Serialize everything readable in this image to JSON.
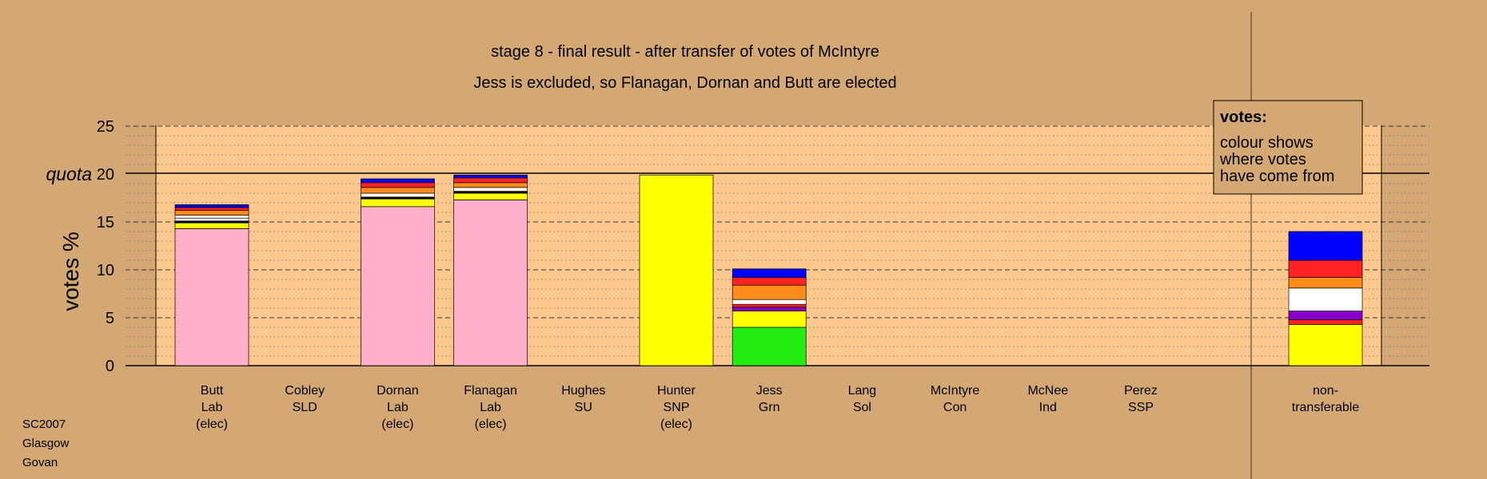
{
  "chart_data": {
    "type": "bar",
    "stacked": true,
    "title": "stage 8 - final result - after transfer of votes of McIntyre",
    "subtitle": "Jess is excluded, so Flanagan, Dornan and Butt are elected",
    "ylabel": "votes %",
    "ylim": [
      0,
      25
    ],
    "yticks": [
      0,
      5,
      10,
      15,
      20,
      25
    ],
    "quota_label": "quota",
    "quota_value": 20,
    "categories": [
      {
        "lines": [
          "Butt",
          "Lab",
          "(elec)"
        ]
      },
      {
        "lines": [
          "Cobley",
          "SLD"
        ]
      },
      {
        "lines": [
          "Dornan",
          "Lab",
          "(elec)"
        ]
      },
      {
        "lines": [
          "Flanagan",
          "Lab",
          "(elec)"
        ]
      },
      {
        "lines": [
          "Hughes",
          "SU"
        ]
      },
      {
        "lines": [
          "Hunter",
          "SNP",
          "(elec)"
        ]
      },
      {
        "lines": [
          "Jess",
          "Grn"
        ]
      },
      {
        "lines": [
          "Lang",
          "Sol"
        ]
      },
      {
        "lines": [
          "McIntyre",
          "Con"
        ]
      },
      {
        "lines": [
          "McNee",
          "Ind"
        ]
      },
      {
        "lines": [
          "Perez",
          "SSP"
        ]
      },
      {
        "lines": [
          "non-",
          "transferable"
        ]
      }
    ],
    "colors": {
      "Lab": "#FFB0C8",
      "SNP": "#FFFF00",
      "Grn": "#22EE11",
      "Sol": "#FF2222",
      "SSP": "#FF8C1A",
      "Con": "#0000FF",
      "Ind": "#FFFFFF",
      "SU": "#8800CC",
      "SLD": "#FFAA00",
      "black": "#000000"
    },
    "stacks": [
      [
        [
          "Lab",
          14.3
        ],
        [
          "SNP",
          0.6
        ],
        [
          "black",
          0.2
        ],
        [
          "Ind",
          0.3
        ],
        [
          "Ind",
          0.3
        ],
        [
          "SSP",
          0.5
        ],
        [
          "Sol",
          0.3
        ],
        [
          "Con",
          0.3
        ]
      ],
      [],
      [
        [
          "Lab",
          16.6
        ],
        [
          "SNP",
          0.8
        ],
        [
          "black",
          0.2
        ],
        [
          "Ind",
          0.4
        ],
        [
          "SSP",
          0.6
        ],
        [
          "Sol",
          0.5
        ],
        [
          "Con",
          0.4
        ]
      ],
      [
        [
          "Lab",
          17.3
        ],
        [
          "SNP",
          0.7
        ],
        [
          "black",
          0.2
        ],
        [
          "Ind",
          0.4
        ],
        [
          "SSP",
          0.5
        ],
        [
          "Sol",
          0.5
        ],
        [
          "Con",
          0.3
        ]
      ],
      [],
      [
        [
          "SNP",
          19.9
        ]
      ],
      [
        [
          "Grn",
          4.0
        ],
        [
          "SNP",
          1.7
        ],
        [
          "SU",
          0.4
        ],
        [
          "Sol",
          0.3
        ],
        [
          "Ind",
          0.5
        ],
        [
          "SSP",
          1.5
        ],
        [
          "Sol",
          0.8
        ],
        [
          "Con",
          0.9
        ]
      ],
      [],
      [],
      [],
      [],
      [
        [
          "SNP",
          4.3
        ],
        [
          "Sol",
          0.5
        ],
        [
          "SU",
          0.9
        ],
        [
          "Ind",
          2.4
        ],
        [
          "SSP",
          1.1
        ],
        [
          "Sol",
          1.8
        ],
        [
          "Con",
          3.0
        ]
      ]
    ],
    "legend": {
      "title": "votes:",
      "lines": [
        "colour shows",
        "where votes",
        "have come from"
      ],
      "placement": "top-right"
    },
    "grid": true
  },
  "corner_text": [
    "SC2007",
    "Glasgow",
    "Govan"
  ]
}
